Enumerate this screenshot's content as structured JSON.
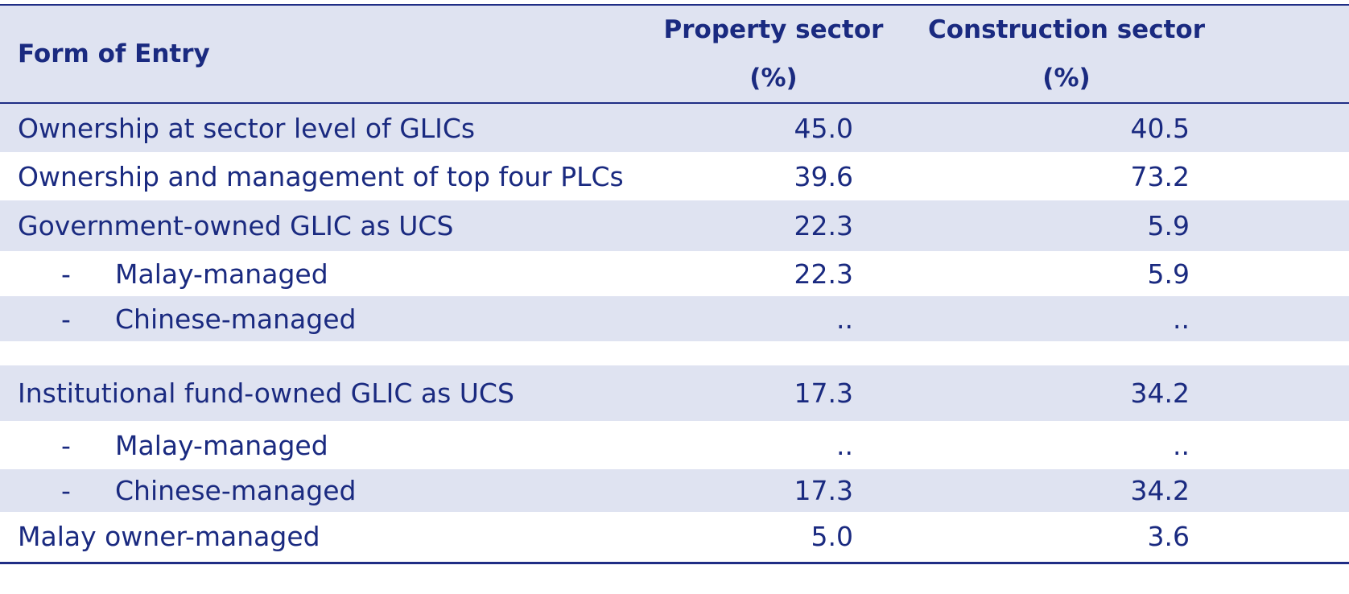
{
  "header": {
    "form_of_entry": "Form of Entry",
    "property_line1": "Property sector",
    "property_line2": "(%)",
    "construction_line1": "Construction sector",
    "construction_line2": "(%)"
  },
  "rows": [
    {
      "label": "Ownership at sector level of GLICs",
      "property": "45.0",
      "construction": "40.5",
      "sub": false
    },
    {
      "label": "Ownership and management of top four PLCs",
      "property": "39.6",
      "construction": "73.2",
      "sub": false
    },
    {
      "label": "Government-owned GLIC as UCS",
      "property": "22.3",
      "construction": "5.9",
      "sub": false
    },
    {
      "label": "Malay-managed",
      "dash": "-",
      "property": "22.3",
      "construction": "5.9",
      "sub": true
    },
    {
      "label": "Chinese-managed",
      "dash": "-",
      "property": "..",
      "construction": "..",
      "sub": true
    },
    {
      "label": "Institutional fund-owned GLIC as UCS",
      "property": "17.3",
      "construction": "34.2",
      "sub": false
    },
    {
      "label": "Malay-managed",
      "dash": "-",
      "property": "..",
      "construction": "..",
      "sub": true
    },
    {
      "label": "Chinese-managed",
      "dash": "-",
      "property": "17.3",
      "construction": "34.2",
      "sub": true
    },
    {
      "label": "Malay owner-managed",
      "property": "5.0",
      "construction": "3.6",
      "sub": false
    }
  ],
  "colors": {
    "text": "#1a2a80",
    "shade": "#dfe3f1",
    "rule": "#1f2d85"
  }
}
